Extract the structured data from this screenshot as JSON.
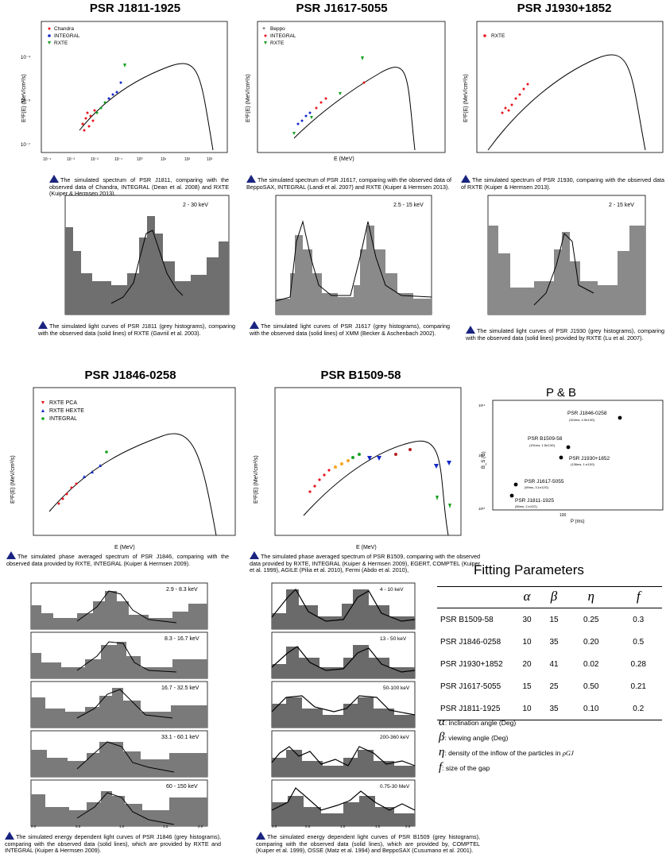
{
  "titles": {
    "j1811": "PSR J1811-1925",
    "j1617": "PSR J1617-5055",
    "j1930": "PSR J1930+1852",
    "j1846": "PSR J1846-0258",
    "b1509": "PSR B1509-58",
    "pb": "P & B",
    "fit": "Fitting Parameters"
  },
  "axes": {
    "ylabel_spec": "E²F(E) (MeV/cm²/s)",
    "xlabel_spec": "E (MeV)",
    "xticks_spec": [
      "10⁻⁴",
      "10⁻³",
      "10⁻²",
      "10⁻¹",
      "10⁰",
      "10¹",
      "10²",
      "10³"
    ],
    "lc_xticks": [
      "0.0",
      "0.5",
      "1.0",
      "1.5",
      "2.0"
    ]
  },
  "legends": {
    "j1811": [
      "Chandra",
      "INTEGRAL",
      "RXTE"
    ],
    "j1617": [
      "Beppo",
      "INTEGRAL",
      "RXTE"
    ],
    "j1930": [
      "RXTE"
    ],
    "j1846": [
      "RXTE PCA",
      "RXTE HEXTE",
      "INTEGRAL"
    ]
  },
  "energy_labels": {
    "j1811": "2 - 30 keV",
    "j1617": "2.5 - 15 keV",
    "j1930": "2 - 15 keV",
    "j1846": [
      "2.9 - 8.3 keV",
      "8.3 - 16.7 keV",
      "16.7 - 32.5 keV",
      "33.1 - 60.1 keV",
      "60 - 150 keV"
    ],
    "b1509": [
      "4 - 10 keV",
      "13 - 50 keV",
      "50-100 keV",
      "200-360 keV",
      "0.75-30 MeV"
    ]
  },
  "captions": {
    "spec_j1811": "The simulated spectrum of PSR J1811, comparing with the observed data of Chandra, INTEGRAL (Dean et al. 2008) and RXTE (Kuiper & Hermsen 2013).",
    "spec_j1617": "The simulated spectrum of PSR J1617, comparing with the observed data of BeppoSAX, INTEGRAL (Landi et al. 2007) and RXTE (Kuiper & Hermsen 2013).",
    "spec_j1930": "The simulated spectrum of PSR J1930, comparing with the observed data of RXTE (Kuiper & Hermsen 2013).",
    "lc_j1811": "The simulated light curves of PSR J1811 (grey histograms), comparing with the observed data (solid lines) of RXTE (Gavriil et al. 2003).",
    "lc_j1617": "The simulated light curves of PSR J1617 (grey histograms), comparing with the observed data (solid lines) of XMM (Becker & Aschenbach 2002).",
    "lc_j1930": "The simulated light curves of PSR J1930 (grey histograms), comparing with the observed data (solid lines) provided by RXTE (Lu et al. 2007).",
    "spec_j1846": "The simulated phase averaged spectrum of PSR J1846, comparing with the observed data provided by RXTE, INTEGRAL (Kuiper & Hermsen 2009).",
    "spec_b1509": "The simulated phase averaged spectrum of PSR B1509, comparing with the observed data provided by RXTE, INTEGRAL (Kuiper & Hermsen 2009), EGERT, COMPTEL (Kuiper et al. 1999), AGILE (Pilia et al. 2010), Fermi (Abdo et al. 2010),",
    "lc_j1846": "The simulated energy dependent light curves of PSR J1846 (grey histograms), comparing with the observed data (solid lines), which are provided by RXTE and INTEGRAL (Kuiper & Hermsen 2009).",
    "lc_b1509": "The simulated energy dependent light curves of PSR B1509 (grey histograms), comparing with the observed data (solid lines), which are provided by, COMPTEL (Kuiper et al. 1999), OSSE (Matz et al. 1994) and BeppoSAX (Cusumano et al. 2001)."
  },
  "pb_plot": {
    "ylabel": "B_S (G)",
    "xlabel": "P (ms)",
    "xtick": "100",
    "yticks": [
      "10¹⁴",
      "10¹³",
      "10¹²"
    ],
    "points": [
      {
        "name": "PSR J1846-0258",
        "detail": "(324ms, 4.9e13G)"
      },
      {
        "name": "PSR B1509-58",
        "detail": "(151ms, 1.5e13G)"
      },
      {
        "name": "PSR J1930+1852",
        "detail": "(136ms, 1.e13G)"
      },
      {
        "name": "PSR J1617-5055",
        "detail": "(69ms, 3.1e12G)"
      },
      {
        "name": "PSR J1811-1925",
        "detail": "(65ms, 2.e12G)"
      }
    ]
  },
  "fit_table": {
    "headers": [
      "α",
      "β",
      "η",
      "f"
    ],
    "rows": [
      {
        "name": "PSR B1509-58",
        "alpha": "30",
        "beta": "15",
        "eta": "0.25",
        "f": "0.3"
      },
      {
        "name": "PSR J1846-0258",
        "alpha": "10",
        "beta": "35",
        "eta": "0.20",
        "f": "0.5"
      },
      {
        "name": "PSR J1930+1852",
        "alpha": "20",
        "beta": "41",
        "eta": "0.02",
        "f": "0.28"
      },
      {
        "name": "PSR J1617-5055",
        "alpha": "15",
        "beta": "25",
        "eta": "0.50",
        "f": "0.21"
      },
      {
        "name": "PSR J1811-1925",
        "alpha": "10",
        "beta": "35",
        "eta": "0.10",
        "f": "0.2"
      }
    ]
  },
  "param_legend": {
    "alpha_sym": "α",
    "alpha": ": inclination angle (Deg)",
    "beta_sym": "β",
    "beta": ": viewing angle (Deg)",
    "eta_sym": "η",
    "eta": ": density of the inflow of the particles in ",
    "rho": "ρGJ",
    "f_sym": "f",
    "f": ": size of the gap"
  },
  "colors": {
    "rxte": "#e8141c",
    "integral": "#1428c8",
    "green": "#15a020",
    "grey": "#7a7a7a",
    "dark": "#555555",
    "triangle": "#1a2480"
  }
}
